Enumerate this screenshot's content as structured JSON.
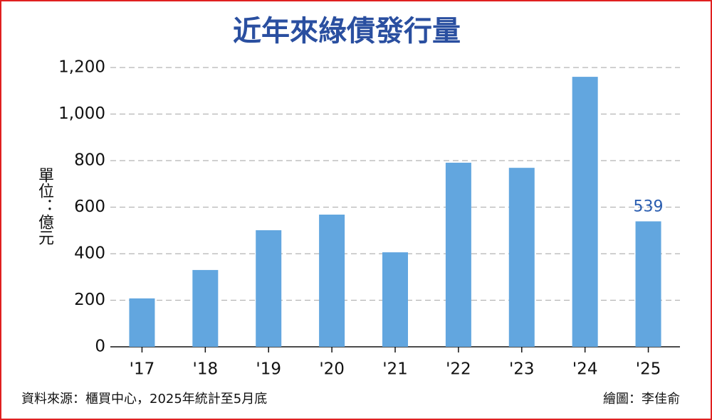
{
  "chart_data": {
    "type": "bar",
    "title": "近年來綠債發行量",
    "y_label": "單位：億元",
    "categories": [
      "'17",
      "'18",
      "'19",
      "'20",
      "'21",
      "'22",
      "'23",
      "'24",
      "'25"
    ],
    "values": [
      208,
      330,
      501,
      568,
      406,
      791,
      769,
      1160,
      539
    ],
    "color": "#62a6df",
    "label_color": "#2a5db0",
    "ylim": [
      0,
      1200
    ],
    "yticks": [
      0,
      200,
      400,
      600,
      800,
      {
        "value": 1000,
        "label": "1,000"
      },
      {
        "value": 1200,
        "label": "1,200"
      }
    ],
    "grid": true,
    "source": "資料來源：櫃買中心，2025年統計至5月底",
    "credit": "繪圖：李佳俞"
  }
}
